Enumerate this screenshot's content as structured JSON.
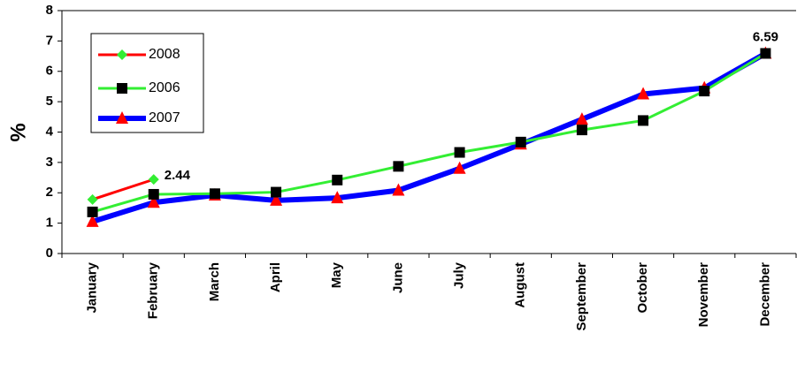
{
  "chart_data": {
    "type": "line",
    "y_label": "%",
    "categories": [
      "January",
      "February",
      "March",
      "April",
      "May",
      "June",
      "July",
      "August",
      "September",
      "October",
      "November",
      "December"
    ],
    "series": [
      {
        "name": "2008",
        "color": "#ff0000",
        "marker": "diamond",
        "marker_color": "#33ee33",
        "line_width": 3,
        "values": [
          1.78,
          2.44,
          null,
          null,
          null,
          null,
          null,
          null,
          null,
          null,
          null,
          null
        ],
        "value_labels": [
          null,
          "2.44",
          null,
          null,
          null,
          null,
          null,
          null,
          null,
          null,
          null,
          null
        ]
      },
      {
        "name": "2006",
        "color": "#33ee33",
        "marker": "square",
        "marker_color": "#000000",
        "line_width": 3,
        "values": [
          1.37,
          1.95,
          1.97,
          2.02,
          2.42,
          2.87,
          3.33,
          3.67,
          4.07,
          4.38,
          5.35,
          6.59
        ]
      },
      {
        "name": "2007",
        "color": "#0000ff",
        "marker": "triangle",
        "marker_color": "#ff0000",
        "line_width": 6,
        "values": [
          1.05,
          1.68,
          1.92,
          1.75,
          1.83,
          2.08,
          2.8,
          3.6,
          4.42,
          5.25,
          5.45,
          6.59
        ],
        "value_labels": [
          null,
          null,
          null,
          null,
          null,
          null,
          null,
          null,
          null,
          null,
          null,
          "6.59"
        ]
      }
    ],
    "ylim": [
      0,
      8
    ],
    "yticks": [
      0,
      1,
      2,
      3,
      4,
      5,
      6,
      7,
      8
    ],
    "legend": "upper-left"
  }
}
